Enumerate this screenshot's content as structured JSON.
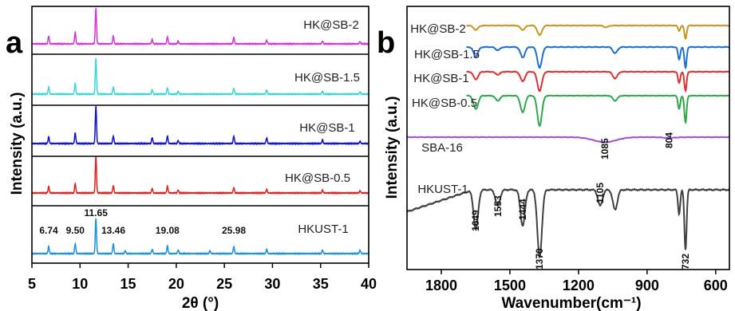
{
  "chart_data": [
    {
      "panel": "a",
      "type": "line",
      "xlabel": "2θ (°)",
      "ylabel": "Intensity (a.u.)",
      "xlim": [
        5,
        40
      ],
      "x_ticks": [
        5,
        10,
        15,
        20,
        25,
        30,
        35,
        40
      ],
      "x_tick_labels": [
        "5",
        "10",
        "15",
        "20",
        "25",
        "30",
        "35",
        "40"
      ],
      "y_ticks_shown": false,
      "peak_labels": [
        "6.74",
        "9.50",
        "11.65",
        "13.46",
        "19.08",
        "25.98"
      ],
      "peak_positions": [
        6.74,
        9.5,
        11.65,
        13.46,
        19.08,
        25.98
      ],
      "series": [
        {
          "name": "HK@SB-2",
          "color": "#d633d6",
          "peaks": [
            [
              6.74,
              0.22
            ],
            [
              9.5,
              0.32
            ],
            [
              11.65,
              1.0
            ],
            [
              13.46,
              0.22
            ],
            [
              17.5,
              0.12
            ],
            [
              19.08,
              0.2
            ],
            [
              20.2,
              0.08
            ],
            [
              25.98,
              0.18
            ],
            [
              29.4,
              0.1
            ],
            [
              35.2,
              0.08
            ],
            [
              39.1,
              0.06
            ]
          ]
        },
        {
          "name": "HK@SB-1.5",
          "color": "#3ad6d6",
          "peaks": [
            [
              6.74,
              0.2
            ],
            [
              9.5,
              0.3
            ],
            [
              11.65,
              1.0
            ],
            [
              13.46,
              0.2
            ],
            [
              17.5,
              0.12
            ],
            [
              19.08,
              0.18
            ],
            [
              20.2,
              0.08
            ],
            [
              25.98,
              0.17
            ],
            [
              29.4,
              0.12
            ],
            [
              35.2,
              0.08
            ],
            [
              39.1,
              0.06
            ]
          ]
        },
        {
          "name": "HK@SB-1",
          "color": "#1010d6",
          "peaks": [
            [
              6.74,
              0.18
            ],
            [
              9.5,
              0.28
            ],
            [
              11.65,
              1.0
            ],
            [
              13.46,
              0.2
            ],
            [
              17.5,
              0.16
            ],
            [
              19.08,
              0.2
            ],
            [
              20.2,
              0.08
            ],
            [
              25.98,
              0.2
            ],
            [
              29.4,
              0.15
            ],
            [
              35.2,
              0.1
            ],
            [
              39.1,
              0.06
            ]
          ]
        },
        {
          "name": "HK@SB-0.5",
          "color": "#e02020",
          "peaks": [
            [
              6.74,
              0.18
            ],
            [
              9.5,
              0.26
            ],
            [
              11.65,
              1.0
            ],
            [
              13.46,
              0.2
            ],
            [
              17.5,
              0.12
            ],
            [
              19.08,
              0.18
            ],
            [
              20.2,
              0.08
            ],
            [
              25.98,
              0.15
            ],
            [
              29.4,
              0.1
            ],
            [
              35.2,
              0.08
            ],
            [
              39.1,
              0.06
            ]
          ]
        },
        {
          "name": "HKUST-1",
          "color": "#1c8fe0",
          "peaks": [
            [
              6.74,
              0.2
            ],
            [
              9.5,
              0.28
            ],
            [
              11.65,
              1.0
            ],
            [
              13.46,
              0.28
            ],
            [
              14.7,
              0.08
            ],
            [
              17.5,
              0.12
            ],
            [
              19.08,
              0.22
            ],
            [
              20.2,
              0.1
            ],
            [
              23.5,
              0.08
            ],
            [
              25.98,
              0.2
            ],
            [
              29.4,
              0.12
            ],
            [
              35.2,
              0.1
            ],
            [
              39.1,
              0.1
            ]
          ]
        }
      ]
    },
    {
      "panel": "b",
      "type": "line",
      "xlabel": "Wavenumber(cm⁻¹)",
      "ylabel": "Intensity (a.u.)",
      "xlim": [
        1950,
        540
      ],
      "x_reversed": true,
      "x_ticks": [
        1800,
        1500,
        1200,
        900,
        600
      ],
      "x_tick_labels": [
        "1800",
        "1500",
        "1200",
        "900",
        "600"
      ],
      "y_ticks_shown": false,
      "band_labels": [
        "1649",
        "1553",
        "1444",
        "1370",
        "1105",
        "1085",
        "804",
        "732"
      ],
      "band_positions": [
        1649,
        1553,
        1444,
        1370,
        1105,
        1085,
        804,
        732
      ],
      "series": [
        {
          "name": "HK@SB-2",
          "color": "#c8961e",
          "bands": [
            [
              1649,
              0.25
            ],
            [
              1444,
              0.25
            ],
            [
              1370,
              0.55
            ],
            [
              1080,
              0.1
            ],
            [
              760,
              0.3
            ],
            [
              732,
              0.75
            ]
          ]
        },
        {
          "name": "HK@SB-1.5",
          "color": "#1c6fd6",
          "bands": [
            [
              1649,
              0.45
            ],
            [
              1553,
              0.15
            ],
            [
              1444,
              0.5
            ],
            [
              1370,
              1.0
            ],
            [
              1040,
              0.3
            ],
            [
              760,
              0.6
            ],
            [
              732,
              1.0
            ]
          ]
        },
        {
          "name": "HK@SB-1",
          "color": "#e03030",
          "bands": [
            [
              1649,
              0.4
            ],
            [
              1553,
              0.15
            ],
            [
              1444,
              0.5
            ],
            [
              1370,
              1.0
            ],
            [
              1040,
              0.35
            ],
            [
              760,
              0.6
            ],
            [
              732,
              1.0
            ]
          ]
        },
        {
          "name": "HK@SB-0.5",
          "color": "#2ea84a",
          "bands": [
            [
              1649,
              0.8
            ],
            [
              1553,
              0.3
            ],
            [
              1444,
              1.0
            ],
            [
              1370,
              1.8
            ],
            [
              1040,
              0.3
            ],
            [
              760,
              0.8
            ],
            [
              732,
              1.6
            ]
          ]
        },
        {
          "name": "SBA-16",
          "color": "#a050d6",
          "bands": [
            [
              1085,
              0.35
            ],
            [
              804,
              0.05
            ]
          ]
        },
        {
          "name": "HKUST-1",
          "color": "#404040",
          "bands": [
            [
              1649,
              1.0
            ],
            [
              1553,
              0.4
            ],
            [
              1444,
              0.9
            ],
            [
              1370,
              1.7
            ],
            [
              1105,
              0.4
            ],
            [
              1040,
              0.5
            ],
            [
              760,
              0.6
            ],
            [
              732,
              1.5
            ]
          ]
        }
      ]
    }
  ],
  "figure_colors": {
    "axis": "#000000",
    "panel_a_frame": "#000000",
    "panel_b_frame": "#000000"
  }
}
